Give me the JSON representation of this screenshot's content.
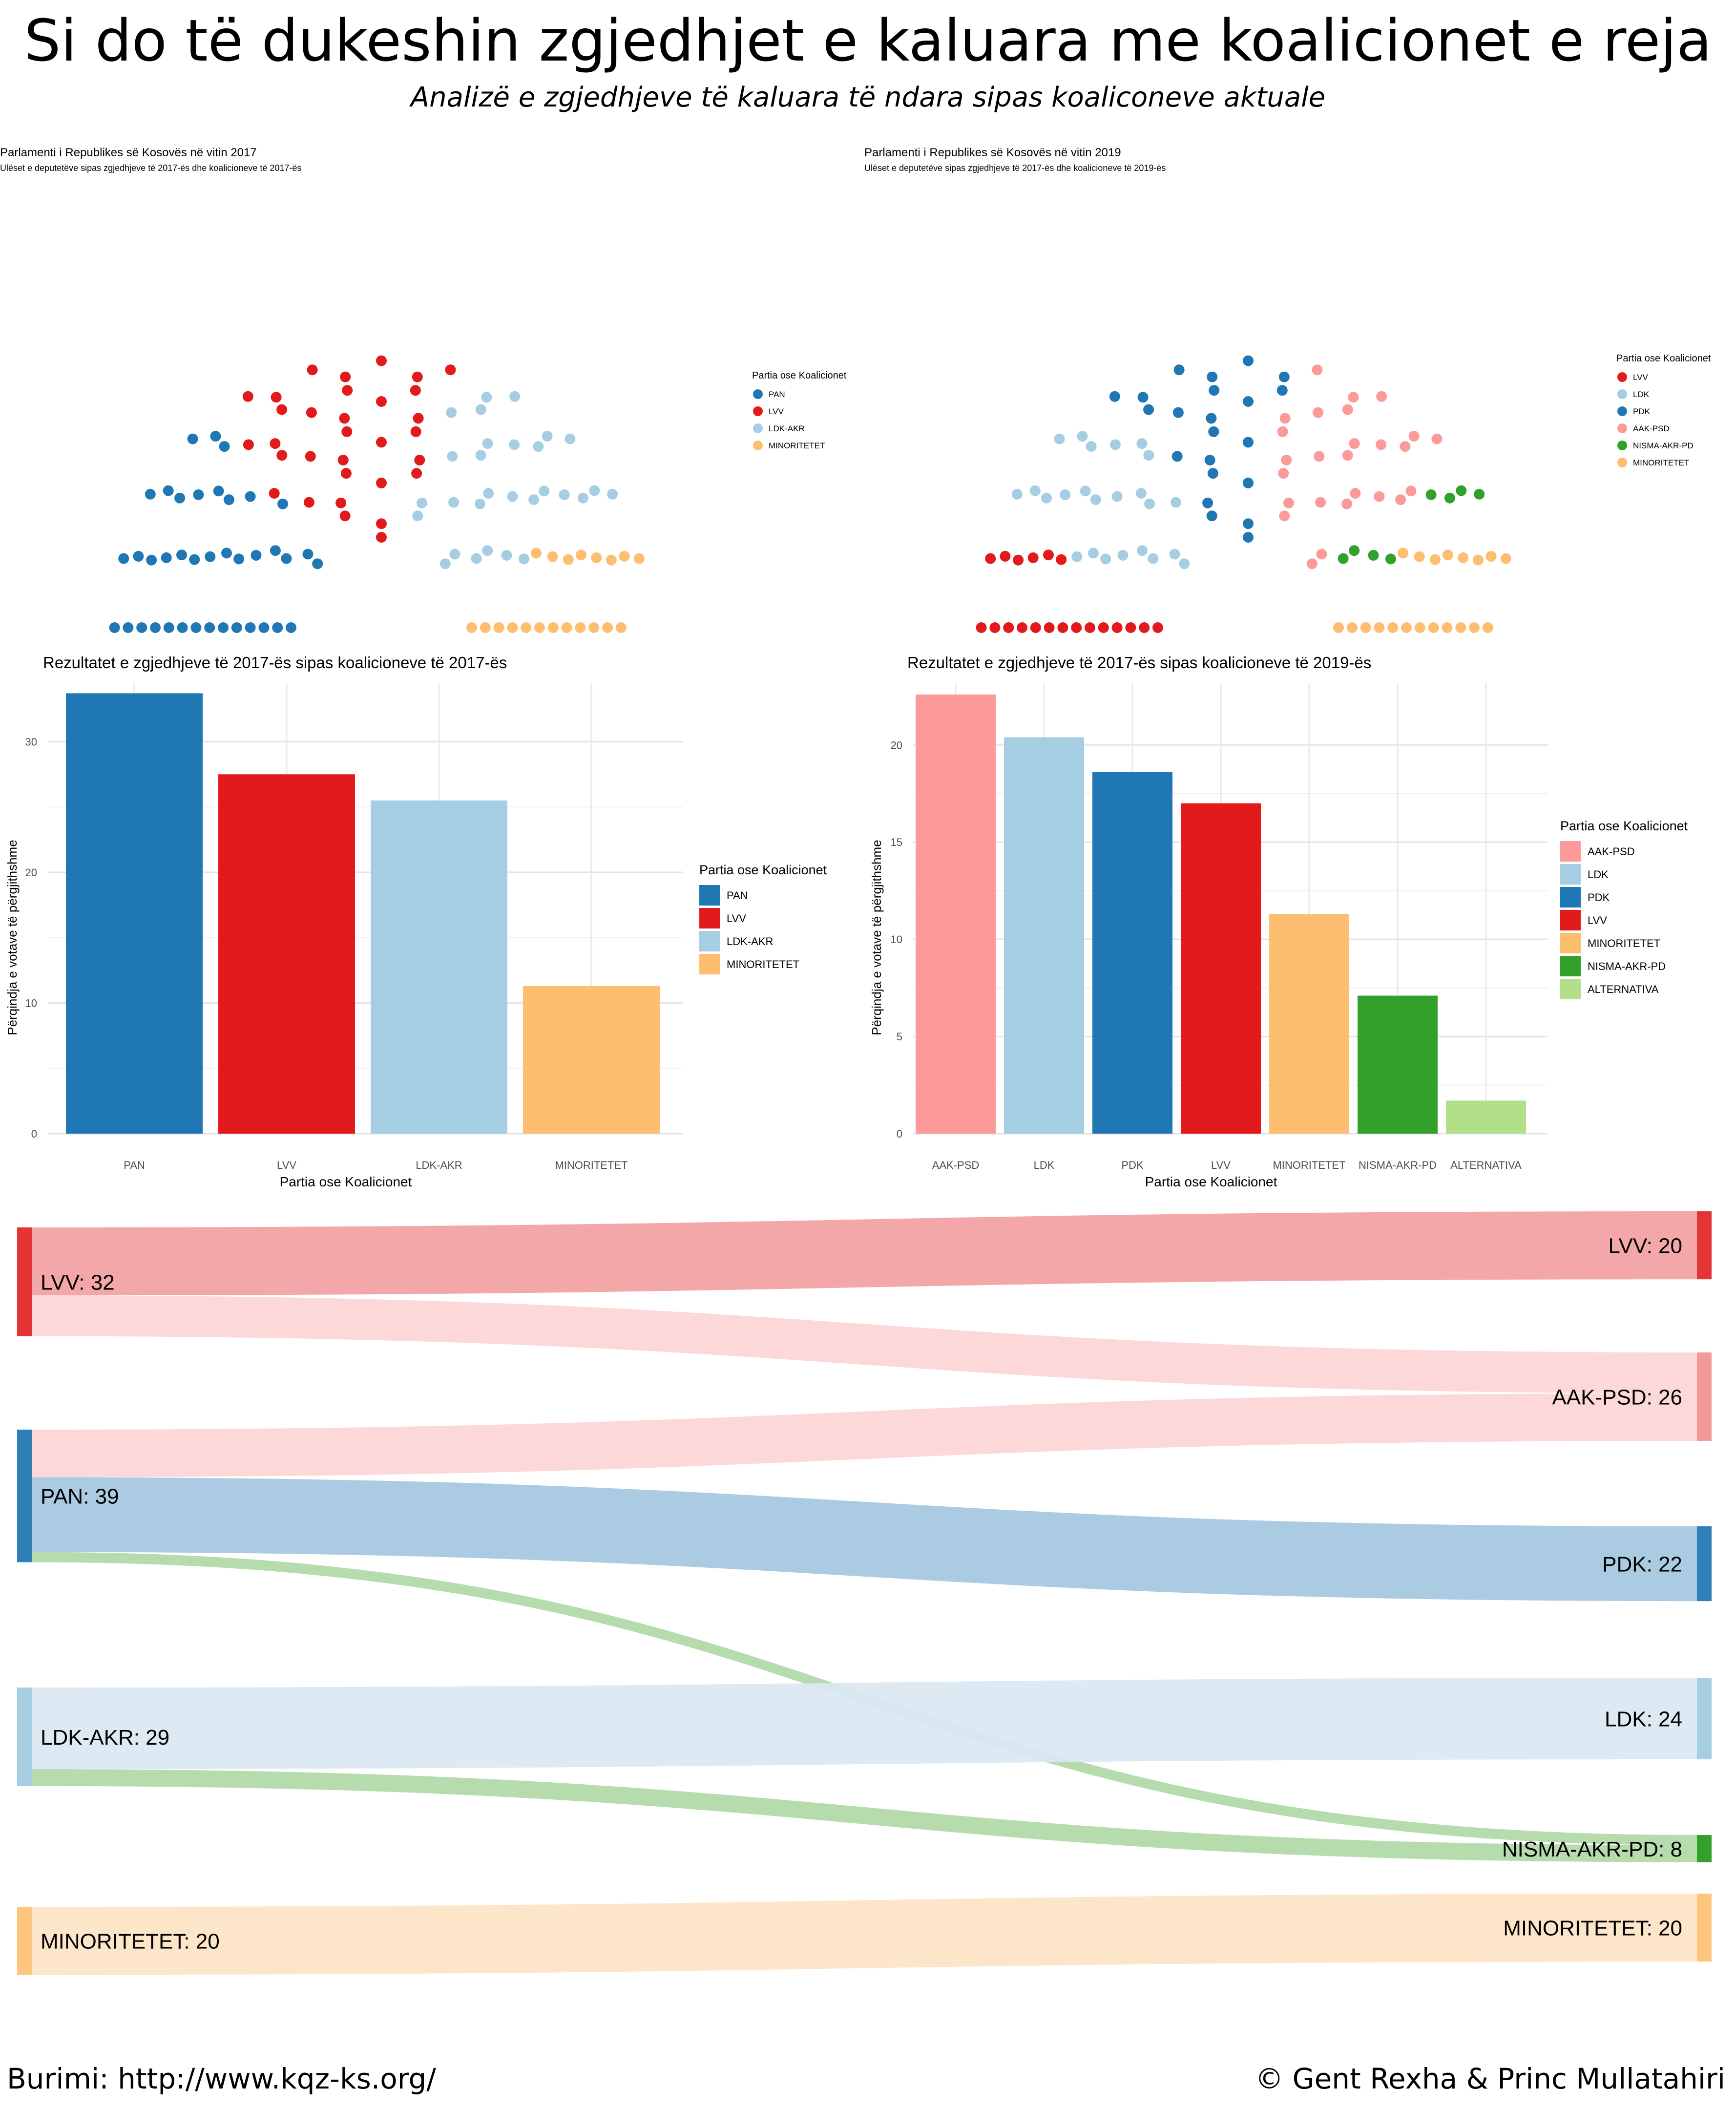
{
  "page": {
    "title": "Si do të dukeshin zgjedhjet e kaluara me koalicionet e reja",
    "subtitle": "Analizë e zgjedhjeve të kaluara të ndara sipas koaliconeve aktuale",
    "source": "Burimi: http://www.kqz-ks.org/",
    "credit": "© Gent Rexha & Princ Mullatahiri"
  },
  "colors": {
    "PAN": "#1f78b4",
    "PDK": "#1f78b4",
    "LVV": "#e31a1c",
    "LDK-AKR": "#a6cee3",
    "LDK": "#a6cee3",
    "AAK-PSD": "#fb9a99",
    "NISMA-AKR-PD": "#33a02c",
    "MINORITETET": "#fdbf6f",
    "ALTERNATIVA": "#b2df8a"
  },
  "chart_data": [
    {
      "type": "parliament",
      "title": "Parlamenti i Republikes së Kosovës në vitin 2017",
      "subtitle": "Ulëset e deputetëve sipas zgjedhjeve të 2017-ës dhe koalicioneve të 2017-ës",
      "legend_title": "Partia ose Koalicionet",
      "legend": [
        "PAN",
        "LVV",
        "LDK-AKR",
        "MINORITETET"
      ],
      "seats": [
        {
          "party": "PAN",
          "seats": 39
        },
        {
          "party": "LVV",
          "seats": 32
        },
        {
          "party": "LDK-AKR",
          "seats": 29
        },
        {
          "party": "MINORITETET",
          "seats": 20
        }
      ],
      "legend_position": "right"
    },
    {
      "type": "parliament",
      "title": "Parlamenti i Republikes së Kosovës në vitin 2019",
      "subtitle": "Ulëset e deputetëve sipas zgjedhjeve të 2017-ës dhe koalicioneve të 2019-ës",
      "legend_title": "Partia ose Koalicionet",
      "legend": [
        "LVV",
        "LDK",
        "PDK",
        "AAK-PSD",
        "NISMA-AKR-PD",
        "MINORITETET"
      ],
      "seats": [
        {
          "party": "LVV",
          "seats": 20
        },
        {
          "party": "LDK",
          "seats": 24
        },
        {
          "party": "PDK",
          "seats": 22
        },
        {
          "party": "AAK-PSD",
          "seats": 26
        },
        {
          "party": "NISMA-AKR-PD",
          "seats": 8
        },
        {
          "party": "MINORITETET",
          "seats": 20
        }
      ],
      "legend_position": "right"
    },
    {
      "type": "bar",
      "title": "Rezultatet e zgjedhjeve të 2017-ës sipas koalicioneve të 2017-ës",
      "xlabel": "Partia ose Koalicionet",
      "ylabel": "Përqindja e votave të përgjithshme",
      "categories": [
        "PAN",
        "LVV",
        "LDK-AKR",
        "MINORITETET"
      ],
      "values": [
        33.7,
        27.5,
        25.5,
        11.3
      ],
      "ylim": [
        0,
        34.5
      ],
      "yticks": [
        0,
        10,
        20,
        30
      ],
      "legend_title": "Partia ose Koalicionet",
      "legend": [
        "PAN",
        "LVV",
        "LDK-AKR",
        "MINORITETET"
      ],
      "grid": true
    },
    {
      "type": "bar",
      "title": "Rezultatet e zgjedhjeve të 2017-ës sipas koalicioneve të 2019-ës",
      "xlabel": "Partia ose Koalicionet",
      "ylabel": "Përqindja e votave të përgjithshme",
      "categories": [
        "AAK-PSD",
        "LDK",
        "PDK",
        "LVV",
        "MINORITETET",
        "NISMA-AKR-PD",
        "ALTERNATIVA"
      ],
      "values": [
        22.6,
        20.4,
        18.6,
        17.0,
        11.3,
        7.1,
        1.7
      ],
      "ylim": [
        0,
        23.2
      ],
      "yticks": [
        0,
        5,
        10,
        15,
        20
      ],
      "legend_title": "Partia ose Koalicionet",
      "legend": [
        "AAK-PSD",
        "LDK",
        "PDK",
        "LVV",
        "MINORITETET",
        "NISMA-AKR-PD",
        "ALTERNATIVA"
      ],
      "grid": true
    },
    {
      "type": "sankey",
      "sources": [
        {
          "label": "LVV: 32",
          "key": "LVV",
          "value": 32
        },
        {
          "label": "PAN: 39",
          "key": "PAN",
          "value": 39
        },
        {
          "label": "LDK-AKR: 29",
          "key": "LDK-AKR",
          "value": 29
        },
        {
          "label": "MINORITETET: 20",
          "key": "MINORITETET",
          "value": 20
        }
      ],
      "targets": [
        {
          "label": "LVV: 20",
          "key": "LVV",
          "value": 20
        },
        {
          "label": "AAK-PSD: 26",
          "key": "AAK-PSD",
          "value": 26
        },
        {
          "label": "PDK: 22",
          "key": "PDK",
          "value": 22
        },
        {
          "label": "LDK: 24",
          "key": "LDK",
          "value": 24
        },
        {
          "label": "NISMA-AKR-PD: 8",
          "key": "NISMA-AKR-PD",
          "value": 8
        },
        {
          "label": "MINORITETET: 20",
          "key": "MINORITETET",
          "value": 20
        }
      ],
      "flows": [
        {
          "from": "LVV",
          "to": "LVV",
          "value": 20
        },
        {
          "from": "LVV",
          "to": "AAK-PSD",
          "value": 12
        },
        {
          "from": "PAN",
          "to": "AAK-PSD",
          "value": 14
        },
        {
          "from": "PAN",
          "to": "PDK",
          "value": 22
        },
        {
          "from": "PAN",
          "to": "NISMA-AKR-PD",
          "value": 3
        },
        {
          "from": "LDK-AKR",
          "to": "LDK",
          "value": 24
        },
        {
          "from": "LDK-AKR",
          "to": "NISMA-AKR-PD",
          "value": 5
        },
        {
          "from": "MINORITETET",
          "to": "MINORITETET",
          "value": 20
        }
      ]
    }
  ]
}
